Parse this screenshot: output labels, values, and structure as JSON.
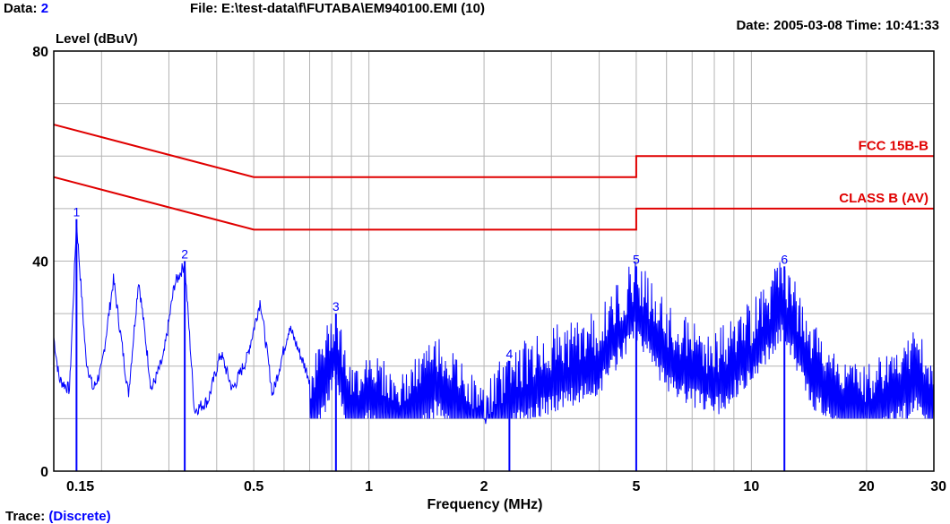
{
  "header": {
    "data_label": "Data:",
    "data_value": "2",
    "file_label": "File: E:\\test-data\\f\\FUTABA\\EM940100.EMI  (10)",
    "date_time": "Date: 2005-03-08  Time: 10:41:33"
  },
  "footer": {
    "trace_label": "Trace:",
    "trace_value": "(Discrete)"
  },
  "colors": {
    "limit": "#e00000",
    "trace": "#0000ff",
    "grid": "#b4b4b4",
    "axis": "#000000"
  },
  "chart_data": {
    "type": "line",
    "ylabel": "Level (dBuV)",
    "xlabel": "Frequency (MHz)",
    "x_scale": "log",
    "xlim": [
      0.15,
      30
    ],
    "ylim": [
      0,
      80
    ],
    "grid": true,
    "x_ticks": [
      0.15,
      0.5,
      1,
      2,
      5,
      10,
      20,
      30
    ],
    "x_tick_labels": [
      "0.15",
      "0.5",
      "1",
      "2",
      "5",
      "10",
      "20",
      "30"
    ],
    "y_ticks": [
      0,
      40,
      80
    ],
    "y_tick_labels": [
      "0",
      "40",
      "80"
    ],
    "limit_lines": [
      {
        "name": "FCC 15B-B",
        "points": [
          [
            0.15,
            66
          ],
          [
            0.5,
            56
          ],
          [
            5,
            56
          ],
          [
            5,
            60
          ],
          [
            30,
            60
          ]
        ]
      },
      {
        "name": "CLASS B (AV)",
        "points": [
          [
            0.15,
            56
          ],
          [
            0.5,
            46
          ],
          [
            5,
            46
          ],
          [
            5,
            50
          ],
          [
            30,
            50
          ]
        ]
      }
    ],
    "markers": [
      {
        "label": "1",
        "x": 0.172,
        "y": 48
      },
      {
        "label": "2",
        "x": 0.33,
        "y": 40
      },
      {
        "label": "3",
        "x": 0.82,
        "y": 30
      },
      {
        "label": "4",
        "x": 2.33,
        "y": 21
      },
      {
        "label": "5",
        "x": 5.0,
        "y": 39
      },
      {
        "label": "6",
        "x": 12.2,
        "y": 39
      }
    ],
    "trace_envelope": [
      [
        0.15,
        26
      ],
      [
        0.155,
        18
      ],
      [
        0.165,
        16
      ],
      [
        0.172,
        48
      ],
      [
        0.182,
        22
      ],
      [
        0.19,
        16
      ],
      [
        0.2,
        20
      ],
      [
        0.215,
        37
      ],
      [
        0.235,
        15
      ],
      [
        0.25,
        37
      ],
      [
        0.27,
        16
      ],
      [
        0.29,
        22
      ],
      [
        0.31,
        36
      ],
      [
        0.33,
        40
      ],
      [
        0.35,
        12
      ],
      [
        0.38,
        14
      ],
      [
        0.41,
        23
      ],
      [
        0.44,
        16
      ],
      [
        0.48,
        22
      ],
      [
        0.52,
        33
      ],
      [
        0.56,
        15
      ],
      [
        0.62,
        28
      ],
      [
        0.7,
        18
      ],
      [
        0.82,
        30
      ],
      [
        0.9,
        17
      ],
      [
        1.0,
        22
      ],
      [
        1.2,
        16
      ],
      [
        1.5,
        24
      ],
      [
        2.0,
        14
      ],
      [
        2.33,
        21
      ],
      [
        3.0,
        25
      ],
      [
        4.0,
        28
      ],
      [
        5.0,
        39
      ],
      [
        6.0,
        29
      ],
      [
        8.0,
        24
      ],
      [
        10.0,
        30
      ],
      [
        12.2,
        39
      ],
      [
        14.0,
        27
      ],
      [
        17.0,
        20
      ],
      [
        20.0,
        18
      ],
      [
        24.0,
        22
      ],
      [
        27.0,
        25
      ],
      [
        30.0,
        20
      ]
    ]
  }
}
